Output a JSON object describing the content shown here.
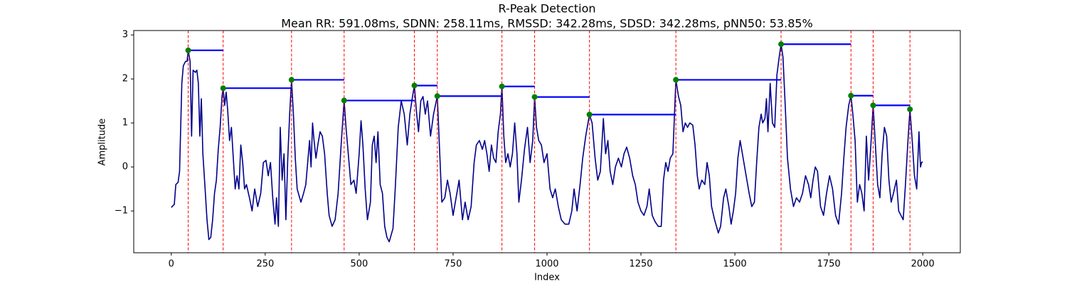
{
  "chart_data": {
    "type": "line",
    "title": "R-Peak Detection",
    "subtitle": "Mean RR: 591.08ms, SDNN: 258.11ms, RMSSD: 342.28ms, SDSD: 342.28ms, pNN50: 53.85%",
    "x_label": "Index",
    "y_label": "Amplitude",
    "xlim": [
      -100,
      2100
    ],
    "xticks": [
      0,
      250,
      500,
      750,
      1000,
      1250,
      1500,
      1750,
      2000
    ],
    "ylim": [
      -1.95,
      3.1
    ],
    "yticks": [
      {
        "value": -1,
        "label": "−1"
      },
      0,
      1,
      2,
      3
    ],
    "series": [
      {
        "color": "#00008b",
        "x": [
          0,
          8,
          12,
          18,
          22,
          28,
          32,
          38,
          42,
          45,
          50,
          54,
          58,
          64,
          68,
          72,
          76,
          80,
          84,
          90,
          95,
          100,
          105,
          110,
          115,
          120,
          125,
          130,
          135,
          138,
          142,
          146,
          150,
          155,
          160,
          165,
          170,
          175,
          180,
          185,
          190,
          195,
          200,
          208,
          215,
          222,
          230,
          238,
          245,
          252,
          258,
          264,
          270,
          276,
          280,
          285,
          290,
          295,
          300,
          305,
          310,
          315,
          320,
          325,
          330,
          335,
          345,
          352,
          358,
          364,
          368,
          372,
          376,
          380,
          385,
          390,
          396,
          402,
          408,
          415,
          420,
          428,
          436,
          444,
          452,
          460,
          465,
          472,
          478,
          486,
          492,
          500,
          505,
          510,
          516,
          522,
          530,
          535,
          540,
          545,
          550,
          556,
          562,
          568,
          574,
          580,
          590,
          596,
          604,
          612,
          620,
          628,
          635,
          642,
          647,
          652,
          658,
          664,
          670,
          676,
          682,
          690,
          698,
          708,
          714,
          720,
          728,
          735,
          742,
          750,
          758,
          766,
          775,
          782,
          790,
          798,
          806,
          812,
          820,
          828,
          834,
          840,
          846,
          852,
          858,
          864,
          870,
          876,
          880,
          885,
          890,
          896,
          902,
          908,
          914,
          920,
          925,
          932,
          940,
          948,
          955,
          962,
          967,
          972,
          978,
          985,
          992,
          1000,
          1008,
          1015,
          1022,
          1030,
          1038,
          1048,
          1058,
          1066,
          1072,
          1080,
          1088,
          1095,
          1103,
          1113,
          1120,
          1128,
          1135,
          1142,
          1150,
          1156,
          1162,
          1168,
          1175,
          1182,
          1190,
          1198,
          1205,
          1212,
          1220,
          1228,
          1235,
          1242,
          1250,
          1258,
          1266,
          1272,
          1280,
          1288,
          1296,
          1304,
          1310,
          1316,
          1322,
          1328,
          1335,
          1343,
          1350,
          1356,
          1362,
          1368,
          1374,
          1380,
          1388,
          1394,
          1400,
          1405,
          1412,
          1420,
          1426,
          1432,
          1438,
          1446,
          1456,
          1462,
          1470,
          1476,
          1484,
          1490,
          1496,
          1502,
          1508,
          1514,
          1520,
          1526,
          1532,
          1538,
          1545,
          1552,
          1558,
          1564,
          1570,
          1574,
          1580,
          1584,
          1588,
          1594,
          1600,
          1606,
          1612,
          1618,
          1623,
          1628,
          1634,
          1640,
          1648,
          1656,
          1664,
          1672,
          1680,
          1688,
          1696,
          1702,
          1708,
          1714,
          1720,
          1728,
          1736,
          1744,
          1752,
          1760,
          1768,
          1776,
          1784,
          1790,
          1796,
          1803,
          1809,
          1814,
          1820,
          1826,
          1832,
          1838,
          1844,
          1850,
          1856,
          1862,
          1868,
          1874,
          1880,
          1886,
          1892,
          1898,
          1904,
          1910,
          1916,
          1922,
          1930,
          1936,
          1942,
          1948,
          1954,
          1960,
          1966,
          1972,
          1978,
          1984,
          1990,
          1994,
          1997,
          2000
        ],
        "values": [
          -0.92,
          -0.85,
          -0.4,
          -0.35,
          -0.1,
          1.9,
          2.3,
          2.4,
          2.4,
          2.65,
          2.4,
          0.7,
          2.2,
          2.15,
          2.2,
          1.9,
          0.7,
          1.55,
          0.3,
          -0.5,
          -1.2,
          -1.65,
          -1.6,
          -1.2,
          -0.6,
          -0.3,
          0.4,
          0.9,
          1.6,
          1.79,
          1.4,
          1.7,
          1.3,
          0.6,
          0.9,
          0.2,
          -0.5,
          -0.2,
          -0.5,
          0.5,
          0.1,
          -0.5,
          -0.4,
          -0.7,
          -1.0,
          -0.5,
          -0.9,
          -0.6,
          0.1,
          0.15,
          -0.2,
          0.1,
          -0.7,
          -1.3,
          -0.7,
          -1.35,
          0.9,
          -0.3,
          0.3,
          -1.2,
          0.2,
          1.2,
          1.98,
          1.2,
          0.2,
          -0.5,
          -0.8,
          -0.6,
          -0.4,
          0.2,
          0.6,
          0.0,
          1.0,
          0.6,
          0.2,
          0.5,
          0.8,
          0.7,
          0.3,
          -0.6,
          -1.1,
          -1.35,
          -1.2,
          -0.6,
          0.5,
          1.51,
          0.9,
          0.2,
          -0.4,
          -0.3,
          -0.6,
          0.3,
          1.05,
          0.5,
          -0.5,
          -1.2,
          -0.8,
          0.5,
          0.7,
          0.1,
          0.8,
          -0.4,
          -0.6,
          -1.35,
          -1.6,
          -1.7,
          -1.4,
          -0.5,
          0.9,
          1.5,
          1.2,
          0.5,
          1.2,
          1.6,
          1.85,
          1.3,
          0.8,
          1.5,
          1.6,
          1.2,
          1.5,
          0.7,
          1.2,
          1.61,
          0.4,
          -0.8,
          -0.7,
          -0.3,
          -0.6,
          -1.1,
          -0.7,
          -0.3,
          -1.2,
          -0.8,
          -1.2,
          -0.9,
          0.1,
          0.5,
          0.6,
          0.4,
          0.6,
          0.3,
          -0.1,
          0.5,
          0.2,
          0.1,
          0.8,
          1.2,
          1.83,
          0.7,
          0.1,
          0.3,
          0.0,
          0.3,
          1.0,
          0.3,
          -0.8,
          -0.3,
          0.4,
          0.9,
          0.1,
          0.6,
          1.59,
          0.9,
          0.6,
          0.5,
          0.1,
          0.3,
          -0.5,
          -0.7,
          -0.5,
          -0.9,
          -1.2,
          -1.3,
          -1.3,
          -1.0,
          -0.5,
          -1.0,
          -0.4,
          0.2,
          0.7,
          1.19,
          1.0,
          0.2,
          -0.3,
          -0.1,
          1.1,
          0.3,
          0.6,
          -0.1,
          -0.4,
          0.0,
          0.2,
          0.0,
          0.3,
          0.45,
          0.2,
          -0.2,
          -0.4,
          -0.8,
          -1.0,
          -1.1,
          -0.9,
          -0.5,
          -1.1,
          -1.25,
          -1.35,
          -1.35,
          -0.3,
          0.1,
          -0.1,
          0.2,
          0.3,
          1.98,
          1.6,
          1.4,
          0.8,
          1.0,
          0.9,
          1.0,
          0.95,
          0.5,
          -0.2,
          -0.5,
          -0.3,
          -0.4,
          0.1,
          -0.2,
          -0.9,
          -1.2,
          -1.5,
          -1.35,
          -0.7,
          -0.5,
          -0.9,
          -1.3,
          -1.0,
          -0.6,
          0.2,
          0.6,
          0.3,
          0.0,
          -0.3,
          -0.6,
          -0.9,
          -0.8,
          0.1,
          0.9,
          1.2,
          1.0,
          1.1,
          1.55,
          0.8,
          1.9,
          1.0,
          0.9,
          2.1,
          2.5,
          2.79,
          2.5,
          1.4,
          0.2,
          -0.5,
          -0.9,
          -0.7,
          -0.8,
          -0.6,
          -0.2,
          -0.4,
          -0.7,
          -0.3,
          0.0,
          -0.1,
          -0.9,
          -1.1,
          -0.6,
          -0.2,
          -0.5,
          -1.1,
          -1.3,
          -0.6,
          0.2,
          0.9,
          1.4,
          1.62,
          1.2,
          0.6,
          -0.8,
          -0.4,
          -0.6,
          -1.0,
          0.7,
          -0.3,
          0.5,
          1.4,
          0.5,
          -0.4,
          -0.7,
          0.3,
          0.9,
          0.7,
          -0.3,
          -0.8,
          -0.6,
          -0.3,
          -1.0,
          -1.1,
          -1.2,
          -0.4,
          0.5,
          1.31,
          0.6,
          -0.2,
          -0.5,
          0.8,
          0.0,
          0.1,
          0.12
        ]
      }
    ],
    "peaks": {
      "color": "#008000",
      "line_color": "#ff0000",
      "level_color": "#0000ff",
      "x": [
        45,
        138,
        320,
        460,
        647,
        708,
        880,
        967,
        1113,
        1343,
        1623,
        1809,
        1868,
        1966
      ],
      "values": [
        2.65,
        1.79,
        1.98,
        1.51,
        1.85,
        1.61,
        1.83,
        1.59,
        1.19,
        1.98,
        2.79,
        1.62,
        1.4,
        1.31
      ]
    }
  }
}
